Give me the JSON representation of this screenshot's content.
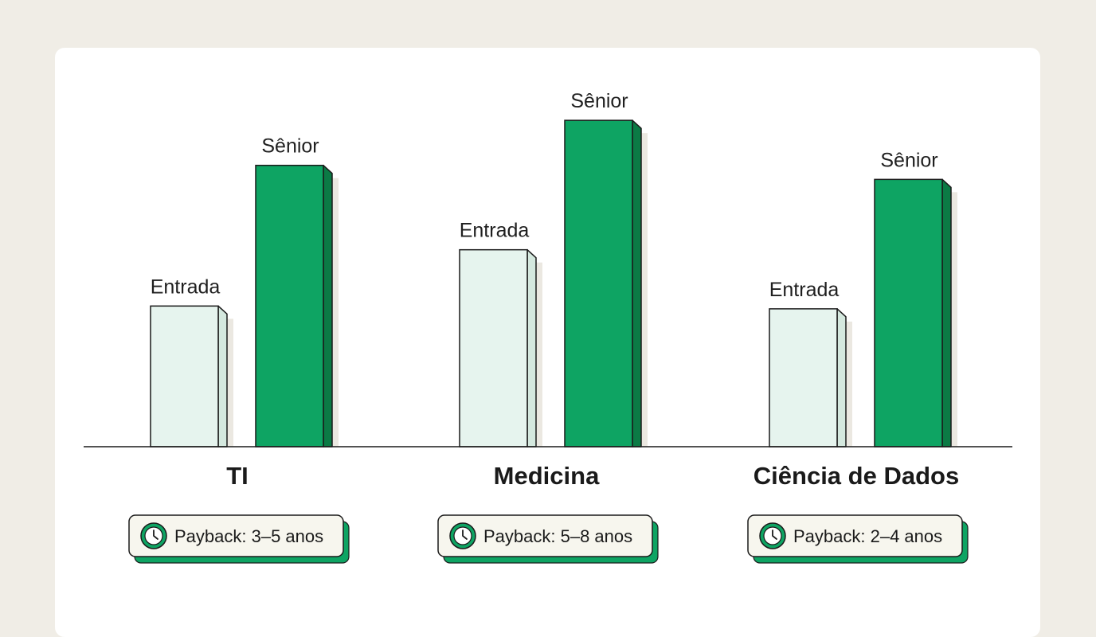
{
  "colors": {
    "entry_fill": "#e6f4ee",
    "senior_fill": "#0ea463",
    "senior_side": "#0b7a45",
    "entry_side": "#d4e8de",
    "outline": "#1a1a1a",
    "shadow": "#ebe8e1",
    "badge_fill": "#f7f6ee",
    "badge_shadow": "#0ea463",
    "clock_fill": "#0ea463"
  },
  "chart_data": {
    "type": "bar",
    "categories": [
      "TI",
      "Medicina",
      "Ciência de Dados"
    ],
    "series": [
      {
        "name": "Entrada",
        "values": [
          5.0,
          7.0,
          4.9
        ]
      },
      {
        "name": "Sênior",
        "values": [
          10.0,
          11.6,
          9.5
        ]
      }
    ],
    "ylim": [
      0,
      12
    ],
    "grid": false,
    "legend": "none",
    "annotations": [
      "Payback: 3–5 anos",
      "Payback: 5–8 anos",
      "Payback: 2–4 anos"
    ]
  }
}
